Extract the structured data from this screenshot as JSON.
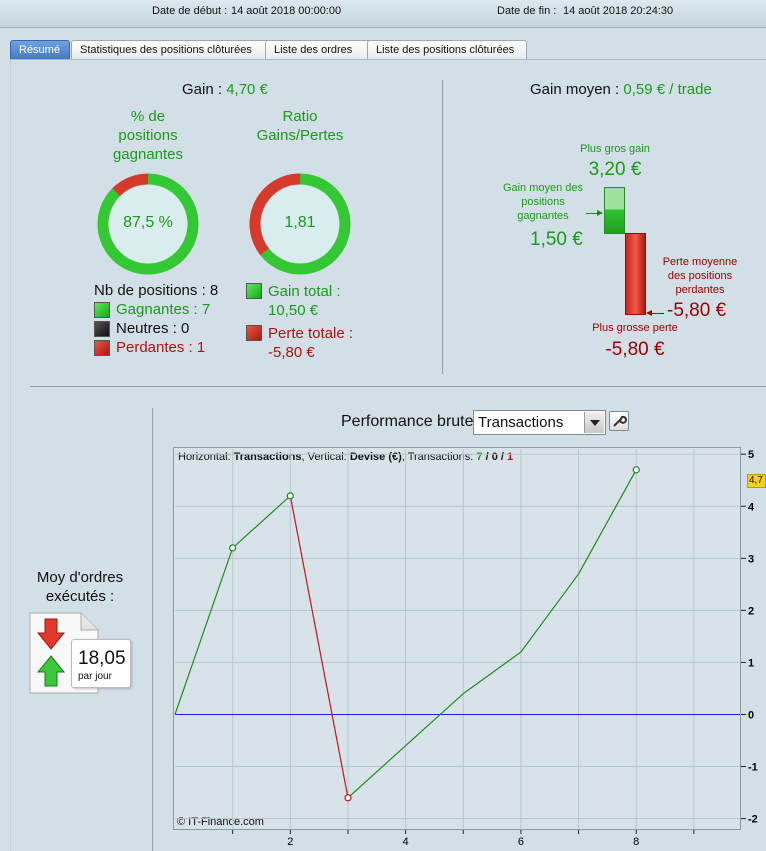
{
  "header": {
    "start_label": "Date de début :",
    "start_value": "14 août 2018 00:00:00",
    "end_label": "Date de fin :",
    "end_value": "14 août 2018 20:24:30"
  },
  "tabs": [
    {
      "label": "Résumé",
      "active": true
    },
    {
      "label": "Statistiques des positions clôturées",
      "active": false
    },
    {
      "label": "Liste des ordres",
      "active": false
    },
    {
      "label": "Liste des positions clôturées",
      "active": false
    }
  ],
  "summary": {
    "gain_label": "Gain :",
    "gain_value": "4,70 €",
    "winrate_title_1": "% de",
    "winrate_title_2": "positions",
    "winrate_title_3": "gagnantes",
    "winrate_value": "87,5 %",
    "winrate_fraction": 0.875,
    "ratio_title_1": "Ratio",
    "ratio_title_2": "Gains/Pertes",
    "ratio_value": "1,81",
    "ratio_green_fraction": 0.644,
    "positions_label": "Nb de positions : 8",
    "winners_label": "Gagnantes : 7",
    "neutral_label": "Neutres : 0",
    "losers_label": "Perdantes : 1",
    "gain_total_label": "Gain total :",
    "gain_total_value": "10,50 €",
    "loss_total_label": "Perte totale :",
    "loss_total_value": "-5,80 €"
  },
  "avg_gain": {
    "label": "Gain moyen :",
    "value": "0,59 € / trade",
    "biggest_gain_label": "Plus gros gain",
    "biggest_gain_value": "3,20 €",
    "avg_win_label_1": "Gain moyen des",
    "avg_win_label_2": "positions",
    "avg_win_label_3": "gagnantes",
    "avg_win_value": "1,50 €",
    "avg_loss_label_1": "Perte moyenne",
    "avg_loss_label_2": "des positions",
    "avg_loss_label_3": "perdantes",
    "avg_loss_value": "-5,80 €",
    "biggest_loss_label": "Plus grosse perte",
    "biggest_loss_value": "-5,80 €"
  },
  "orders": {
    "title_1": "Moy d'ordres",
    "title_2": "exécutés :",
    "value": "18,05",
    "unit": "par jour"
  },
  "performance": {
    "title": "Performance brute",
    "select_value": "Transactions",
    "info_prefix": "Horizontal:",
    "info_h": "Transactions",
    "info_mid": ", Vertical:",
    "info_v": "Devise (€)",
    "info_tr": ", Transactions:",
    "info_wins": "7",
    "info_sep1": "/",
    "info_neutral": "0",
    "info_sep2": "/",
    "info_losses": "1",
    "copyright": "© IT-Finance.com",
    "last_value": "4,7"
  },
  "chart_data": {
    "type": "line",
    "x": [
      0,
      1,
      2,
      3,
      4,
      5,
      6,
      7,
      8
    ],
    "y": [
      0,
      3.2,
      4.2,
      -1.6,
      -0.6,
      0.4,
      1.2,
      2.7,
      4.7
    ],
    "markers": [
      1,
      2,
      3,
      8
    ],
    "losing_segment": [
      2,
      3
    ],
    "xticks": [
      2,
      4,
      6,
      8
    ],
    "yticks": [
      -2,
      -1,
      0,
      1,
      2,
      3,
      4,
      5
    ],
    "xlim": [
      0,
      9.8
    ],
    "ylim": [
      -2.2,
      5.1
    ],
    "colors": {
      "gain": "#1e8c1e",
      "loss": "#c01818",
      "zero": "#1a1aff"
    }
  },
  "colors": {
    "green": "#1a9a1a",
    "red": "#b01010",
    "accent_tab": "#4a7fcb"
  }
}
